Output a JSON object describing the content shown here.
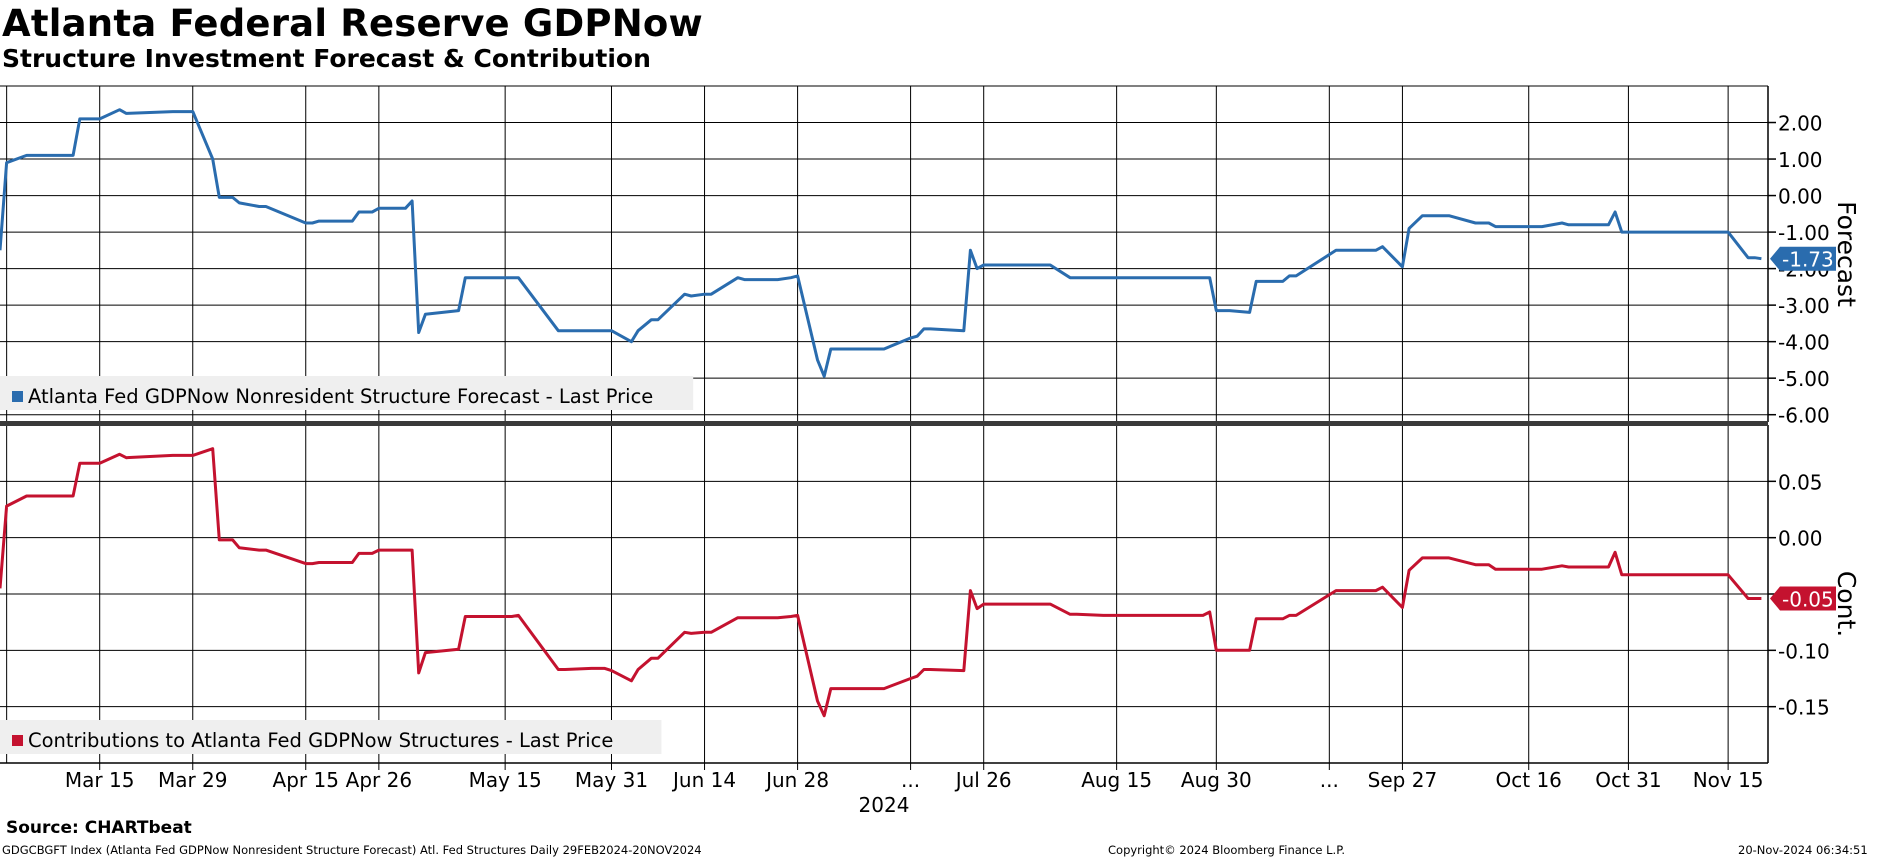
{
  "header": {
    "title": "Atlanta Federal Reserve GDPNow",
    "subtitle": "Structure Investment Forecast & Contribution"
  },
  "footer": {
    "source": "Source: CHARTbeat",
    "description": "GDGCBGFT Index (Atlanta Fed GDPNow Nonresident Structure Forecast) Atl. Fed Structures  Daily 29FEB2024-20NOV2024",
    "copyright": "Copyright© 2024 Bloomberg Finance L.P.",
    "timestamp": "20-Nov-2024 06:34:51"
  },
  "colors": {
    "forecast": "#2a6cae",
    "contribution": "#c4122f",
    "grid": "#000000",
    "background": "#ffffff"
  },
  "chart_data": [
    {
      "type": "line",
      "panel": "top",
      "axis_title": "Forecast",
      "ylim": [
        -6.2,
        3.0
      ],
      "yticks": [
        2,
        1,
        0,
        -1,
        -2,
        -3,
        -4,
        -5,
        -6
      ],
      "ytick_labels": [
        "2.00",
        "1.00",
        "0.00",
        "-1.00",
        "-2.00",
        "-3.00",
        "-4.00",
        "-5.00",
        "-6.00"
      ],
      "grid": true,
      "legend_position": "bottom-left",
      "last_value_label": "-1.73",
      "series": [
        {
          "name": "Atlanta Fed GDPNow Nonresident Structure Forecast - Last Price",
          "x": [
            "2024-02-29",
            "2024-03-01",
            "2024-03-04",
            "2024-03-07",
            "2024-03-08",
            "2024-03-11",
            "2024-03-12",
            "2024-03-13",
            "2024-03-14",
            "2024-03-15",
            "2024-03-18",
            "2024-03-19",
            "2024-03-26",
            "2024-03-28",
            "2024-03-29",
            "2024-04-01",
            "2024-04-02",
            "2024-04-03",
            "2024-04-04",
            "2024-04-05",
            "2024-04-08",
            "2024-04-09",
            "2024-04-15",
            "2024-04-16",
            "2024-04-17",
            "2024-04-18",
            "2024-04-19",
            "2024-04-22",
            "2024-04-23",
            "2024-04-25",
            "2024-04-26",
            "2024-04-29",
            "2024-04-30",
            "2024-05-01",
            "2024-05-02",
            "2024-05-03",
            "2024-05-08",
            "2024-05-09",
            "2024-05-14",
            "2024-05-15",
            "2024-05-16",
            "2024-05-17",
            "2024-05-23",
            "2024-05-24",
            "2024-05-28",
            "2024-05-29",
            "2024-05-30",
            "2024-05-31",
            "2024-06-03",
            "2024-06-04",
            "2024-06-06",
            "2024-06-07",
            "2024-06-11",
            "2024-06-12",
            "2024-06-14",
            "2024-06-15",
            "2024-06-19",
            "2024-06-20",
            "2024-06-25",
            "2024-06-27",
            "2024-06-28",
            "2024-07-01",
            "2024-07-02",
            "2024-07-03",
            "2024-07-08",
            "2024-07-09",
            "2024-07-10",
            "2024-07-11",
            "2024-07-15",
            "2024-07-16",
            "2024-07-17",
            "2024-07-18",
            "2024-07-23",
            "2024-07-24",
            "2024-07-25",
            "2024-07-26",
            "2024-07-29",
            "2024-07-30",
            "2024-07-31",
            "2024-08-01",
            "2024-08-02",
            "2024-08-05",
            "2024-08-08",
            "2024-08-09",
            "2024-08-13",
            "2024-08-14",
            "2024-08-15",
            "2024-08-16",
            "2024-08-20",
            "2024-08-21",
            "2024-08-22",
            "2024-08-26",
            "2024-08-28",
            "2024-08-29",
            "2024-08-30",
            "2024-09-01",
            "2024-09-04",
            "2024-09-05",
            "2024-09-06",
            "2024-09-09",
            "2024-09-10",
            "2024-09-11",
            "2024-09-17",
            "2024-09-18",
            "2024-09-19",
            "2024-09-23",
            "2024-09-24",
            "2024-09-27",
            "2024-09-28",
            "2024-09-30",
            "2024-10-01",
            "2024-10-02",
            "2024-10-03",
            "2024-10-04",
            "2024-10-08",
            "2024-10-09",
            "2024-10-10",
            "2024-10-11",
            "2024-10-15",
            "2024-10-16",
            "2024-10-17",
            "2024-10-18",
            "2024-10-21",
            "2024-10-22",
            "2024-10-24",
            "2024-10-25",
            "2024-10-28",
            "2024-10-29",
            "2024-10-30",
            "2024-10-31",
            "2024-11-01",
            "2024-11-04",
            "2024-11-05",
            "2024-11-06",
            "2024-11-07",
            "2024-11-08",
            "2024-11-12",
            "2024-11-14",
            "2024-11-15",
            "2024-11-18",
            "2024-11-19",
            "2024-11-20"
          ],
          "values": [
            -1.5,
            0.9,
            1.1,
            1.1,
            1.1,
            1.1,
            2.1,
            2.1,
            2.1,
            2.1,
            2.35,
            2.25,
            2.3,
            2.3,
            2.3,
            1.0,
            -0.05,
            -0.05,
            -0.05,
            -0.2,
            -0.3,
            -0.3,
            -0.75,
            -0.75,
            -0.7,
            -0.7,
            -0.7,
            -0.7,
            -0.45,
            -0.45,
            -0.35,
            -0.35,
            -0.35,
            -0.15,
            -3.75,
            -3.25,
            -3.15,
            -2.25,
            -2.25,
            -2.25,
            -2.25,
            -2.25,
            -3.7,
            -3.7,
            -3.7,
            -3.7,
            -3.7,
            -3.7,
            -4.0,
            -3.7,
            -3.4,
            -3.4,
            -2.7,
            -2.75,
            -2.7,
            -2.7,
            -2.25,
            -2.3,
            -2.3,
            -2.25,
            -2.2,
            -4.5,
            -4.95,
            -4.2,
            -4.2,
            -4.2,
            -4.2,
            -4.2,
            -3.9,
            -3.85,
            -3.65,
            -3.65,
            -3.7,
            -1.5,
            -2.0,
            -1.9,
            -1.9,
            -1.9,
            -1.9,
            -1.9,
            -1.9,
            -1.9,
            -2.25,
            -2.25,
            -2.25,
            -2.25,
            -2.25,
            -2.25,
            -2.25,
            -2.25,
            -2.25,
            -2.25,
            -2.25,
            -2.25,
            -3.15,
            -3.15,
            -3.2,
            -2.35,
            -2.35,
            -2.35,
            -2.2,
            -2.2,
            -1.5,
            -1.5,
            -1.5,
            -1.5,
            -1.4,
            -1.95,
            -0.9,
            -0.55,
            -0.55,
            -0.55,
            -0.55,
            -0.55,
            -0.75,
            -0.75,
            -0.75,
            -0.85,
            -0.85,
            -0.85,
            -0.85,
            -0.85,
            -0.75,
            -0.8,
            -0.8,
            -0.8,
            -0.8,
            -0.45,
            -1.0,
            -1.0,
            -1.0,
            -1.0,
            -1.0,
            -1.0,
            -1.0,
            -1.0,
            -1.0,
            -1.0,
            -1.0,
            -1.7,
            -1.7,
            -1.73
          ]
        }
      ]
    },
    {
      "type": "line",
      "panel": "bottom",
      "axis_title": "Cont.",
      "ylim": [
        -0.2,
        0.1
      ],
      "yticks": [
        0.05,
        0.0,
        -0.05,
        -0.1,
        -0.15
      ],
      "ytick_labels": [
        "0.05",
        "0.00",
        "-0.05",
        "-0.10",
        "-0.15"
      ],
      "grid": true,
      "legend_position": "bottom-left",
      "last_value_label": "-0.05",
      "series": [
        {
          "name": "Contributions to Atlanta Fed GDPNow Structures - Last Price",
          "x": [
            "2024-02-29",
            "2024-03-01",
            "2024-03-04",
            "2024-03-07",
            "2024-03-08",
            "2024-03-11",
            "2024-03-12",
            "2024-03-13",
            "2024-03-14",
            "2024-03-15",
            "2024-03-18",
            "2024-03-19",
            "2024-03-26",
            "2024-03-28",
            "2024-03-29",
            "2024-04-01",
            "2024-04-02",
            "2024-04-03",
            "2024-04-04",
            "2024-04-05",
            "2024-04-08",
            "2024-04-09",
            "2024-04-15",
            "2024-04-16",
            "2024-04-17",
            "2024-04-18",
            "2024-04-19",
            "2024-04-22",
            "2024-04-23",
            "2024-04-25",
            "2024-04-26",
            "2024-04-29",
            "2024-04-30",
            "2024-05-01",
            "2024-05-02",
            "2024-05-03",
            "2024-05-08",
            "2024-05-09",
            "2024-05-14",
            "2024-05-15",
            "2024-05-16",
            "2024-05-17",
            "2024-05-23",
            "2024-05-24",
            "2024-05-28",
            "2024-05-29",
            "2024-05-30",
            "2024-05-31",
            "2024-06-03",
            "2024-06-04",
            "2024-06-06",
            "2024-06-07",
            "2024-06-11",
            "2024-06-12",
            "2024-06-14",
            "2024-06-15",
            "2024-06-19",
            "2024-06-20",
            "2024-06-25",
            "2024-06-27",
            "2024-06-28",
            "2024-07-01",
            "2024-07-02",
            "2024-07-03",
            "2024-07-08",
            "2024-07-09",
            "2024-07-10",
            "2024-07-11",
            "2024-07-15",
            "2024-07-16",
            "2024-07-17",
            "2024-07-18",
            "2024-07-23",
            "2024-07-24",
            "2024-07-25",
            "2024-07-26",
            "2024-07-29",
            "2024-07-30",
            "2024-07-31",
            "2024-08-01",
            "2024-08-02",
            "2024-08-05",
            "2024-08-08",
            "2024-08-09",
            "2024-08-13",
            "2024-08-14",
            "2024-08-15",
            "2024-08-16",
            "2024-08-20",
            "2024-08-21",
            "2024-08-22",
            "2024-08-26",
            "2024-08-28",
            "2024-08-29",
            "2024-08-30",
            "2024-09-01",
            "2024-09-04",
            "2024-09-05",
            "2024-09-06",
            "2024-09-09",
            "2024-09-10",
            "2024-09-11",
            "2024-09-17",
            "2024-09-18",
            "2024-09-19",
            "2024-09-23",
            "2024-09-24",
            "2024-09-27",
            "2024-09-28",
            "2024-09-30",
            "2024-10-01",
            "2024-10-02",
            "2024-10-03",
            "2024-10-04",
            "2024-10-08",
            "2024-10-09",
            "2024-10-10",
            "2024-10-11",
            "2024-10-15",
            "2024-10-16",
            "2024-10-17",
            "2024-10-18",
            "2024-10-21",
            "2024-10-22",
            "2024-10-24",
            "2024-10-25",
            "2024-10-28",
            "2024-10-29",
            "2024-10-30",
            "2024-10-31",
            "2024-11-01",
            "2024-11-04",
            "2024-11-05",
            "2024-11-06",
            "2024-11-07",
            "2024-11-08",
            "2024-11-12",
            "2024-11-14",
            "2024-11-15",
            "2024-11-18",
            "2024-11-19",
            "2024-11-20"
          ],
          "values": [
            -0.045,
            0.028,
            0.037,
            0.037,
            0.037,
            0.037,
            0.066,
            0.066,
            0.066,
            0.066,
            0.074,
            0.071,
            0.073,
            0.073,
            0.073,
            0.079,
            -0.002,
            -0.002,
            -0.002,
            -0.009,
            -0.011,
            -0.011,
            -0.023,
            -0.023,
            -0.022,
            -0.022,
            -0.022,
            -0.022,
            -0.014,
            -0.014,
            -0.011,
            -0.011,
            -0.011,
            -0.011,
            -0.12,
            -0.102,
            -0.099,
            -0.07,
            -0.07,
            -0.07,
            -0.07,
            -0.069,
            -0.117,
            -0.117,
            -0.116,
            -0.116,
            -0.116,
            -0.118,
            -0.127,
            -0.117,
            -0.107,
            -0.107,
            -0.084,
            -0.085,
            -0.084,
            -0.084,
            -0.071,
            -0.071,
            -0.071,
            -0.07,
            -0.069,
            -0.145,
            -0.158,
            -0.134,
            -0.134,
            -0.134,
            -0.134,
            -0.134,
            -0.125,
            -0.123,
            -0.117,
            -0.117,
            -0.118,
            -0.047,
            -0.063,
            -0.059,
            -0.059,
            -0.059,
            -0.059,
            -0.059,
            -0.059,
            -0.059,
            -0.068,
            -0.068,
            -0.069,
            -0.069,
            -0.069,
            -0.069,
            -0.069,
            -0.069,
            -0.069,
            -0.069,
            -0.069,
            -0.066,
            -0.1,
            -0.1,
            -0.1,
            -0.072,
            -0.072,
            -0.072,
            -0.069,
            -0.069,
            -0.047,
            -0.047,
            -0.047,
            -0.047,
            -0.044,
            -0.062,
            -0.029,
            -0.018,
            -0.018,
            -0.018,
            -0.018,
            -0.018,
            -0.024,
            -0.024,
            -0.024,
            -0.028,
            -0.028,
            -0.028,
            -0.028,
            -0.028,
            -0.025,
            -0.026,
            -0.026,
            -0.026,
            -0.026,
            -0.013,
            -0.033,
            -0.033,
            -0.033,
            -0.033,
            -0.033,
            -0.033,
            -0.033,
            -0.033,
            -0.033,
            -0.033,
            -0.033,
            -0.054,
            -0.054,
            -0.054
          ]
        }
      ]
    }
  ],
  "x_axis": {
    "tick_labels": [
      {
        "label": "Mar 15",
        "date": "2024-03-15"
      },
      {
        "label": "Mar 29",
        "date": "2024-03-29"
      },
      {
        "label": "Apr 15",
        "date": "2024-04-15"
      },
      {
        "label": "Apr 26",
        "date": "2024-04-26"
      },
      {
        "label": "May 15",
        "date": "2024-05-15"
      },
      {
        "label": "May 31",
        "date": "2024-05-31"
      },
      {
        "label": "Jun 14",
        "date": "2024-06-14"
      },
      {
        "label": "Jun 28",
        "date": "2024-06-28"
      },
      {
        "label": "...",
        "date": "2024-07-15"
      },
      {
        "label": "Jul 26",
        "date": "2024-07-26"
      },
      {
        "label": "Aug 15",
        "date": "2024-08-15"
      },
      {
        "label": "Aug 30",
        "date": "2024-08-30"
      },
      {
        "label": "...",
        "date": "2024-09-16"
      },
      {
        "label": "Sep 27",
        "date": "2024-09-27"
      },
      {
        "label": "Oct 16",
        "date": "2024-10-16"
      },
      {
        "label": "Oct 31",
        "date": "2024-10-31"
      },
      {
        "label": "Nov 15",
        "date": "2024-11-15"
      }
    ],
    "gridline_dates": [
      "2024-03-01",
      "2024-03-15",
      "2024-03-29",
      "2024-04-15",
      "2024-04-26",
      "2024-05-15",
      "2024-05-31",
      "2024-06-14",
      "2024-06-28",
      "2024-07-15",
      "2024-07-26",
      "2024-08-15",
      "2024-08-30",
      "2024-09-16",
      "2024-09-27",
      "2024-10-16",
      "2024-10-31",
      "2024-11-15"
    ],
    "year_label": "2024",
    "range": [
      "2024-02-29",
      "2024-11-21"
    ]
  }
}
